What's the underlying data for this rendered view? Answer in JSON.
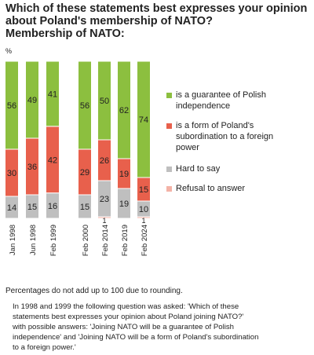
{
  "title_lines": [
    "Which of these statements best expresses your opinion",
    "about Poland's membership of NATO?",
    "Membership of NATO:"
  ],
  "percent_symbol": "%",
  "chart_data": {
    "type": "bar",
    "stacked": true,
    "title": "Which of these statements best expresses your opinion about Poland's membership of NATO? Membership of NATO:",
    "unit": "%",
    "ylim": [
      0,
      100
    ],
    "categories": [
      "Jan 1998",
      "Jun 1998",
      "Feb 1999",
      "Feb 2000",
      "Feb 2014",
      "Feb 2019",
      "Feb 2024"
    ],
    "series": [
      {
        "name": "is a guarantee of Polish independence",
        "color": "#8cbf3f",
        "values": [
          56,
          49,
          41,
          56,
          50,
          62,
          74
        ]
      },
      {
        "name": "is a form of Poland's subordination to a foreign power",
        "color": "#e8604c",
        "values": [
          30,
          36,
          42,
          29,
          26,
          19,
          15
        ]
      },
      {
        "name": "Hard to say",
        "color": "#bfbfbf",
        "values": [
          14,
          15,
          16,
          15,
          23,
          19,
          10
        ]
      },
      {
        "name": "Refusal to answer",
        "color": "#f4b3a7",
        "values": [
          0,
          0,
          0,
          0,
          1,
          0,
          1
        ]
      }
    ],
    "legend_position": "right",
    "grid": false
  },
  "legend": [
    {
      "lines": [
        "is a guarantee of Polish",
        "independence"
      ],
      "color": "#8cbf3f"
    },
    {
      "lines": [
        "is a form of Poland's",
        "subordination to a foreign",
        "power"
      ],
      "color": "#e8604c"
    },
    {
      "lines": [
        "Hard to say"
      ],
      "color": "#bfbfbf"
    },
    {
      "lines": [
        "Refusal to answer"
      ],
      "color": "#f4b3a7"
    }
  ],
  "note": "Percentages do not add up to 100 due to rounding.",
  "footnote_lines": [
    "In 1998 and 1999 the following question was asked: 'Which of these",
    "statements best expresses your opinion about Poland joining NATO?'",
    "with possible answers: 'Joining NATO will be a guarantee of Polish",
    "independence' and 'Joining NATO will be a form of Poland's subordination",
    "to a foreign power.'"
  ]
}
